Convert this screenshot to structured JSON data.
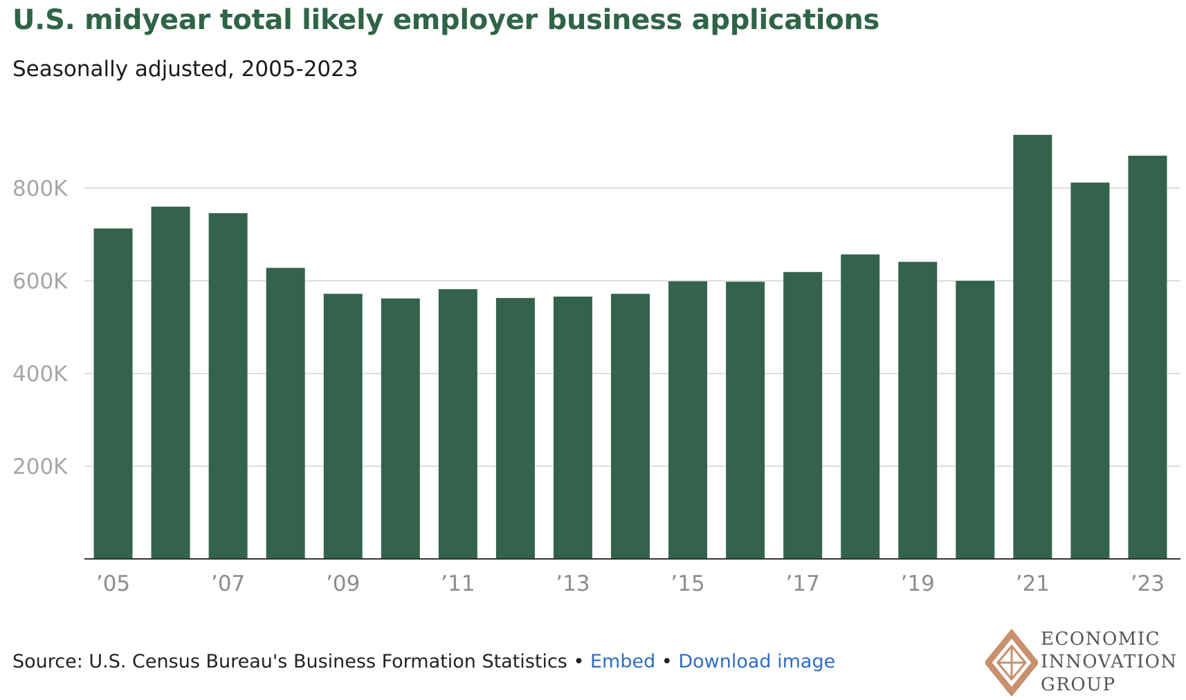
{
  "chart_data": {
    "type": "bar",
    "title": "U.S. midyear total likely employer business applications",
    "subtitle": "Seasonally adjusted, 2005-2023",
    "xlabel": "",
    "ylabel": "",
    "ylim": [
      0,
      950000
    ],
    "yticks": [
      200000,
      400000,
      600000,
      800000
    ],
    "ytick_labels": [
      "200K",
      "400K",
      "600K",
      "800K"
    ],
    "grid": true,
    "bar_color": "#33634c",
    "categories": [
      "2005",
      "2006",
      "2007",
      "2008",
      "2009",
      "2010",
      "2011",
      "2012",
      "2013",
      "2014",
      "2015",
      "2016",
      "2017",
      "2018",
      "2019",
      "2020",
      "2021",
      "2022",
      "2023"
    ],
    "xtick_labels": [
      "’05",
      "",
      "’07",
      "",
      "’09",
      "",
      "’11",
      "",
      "’13",
      "",
      "’15",
      "",
      "’17",
      "",
      "’19",
      "",
      "’21",
      "",
      "’23"
    ],
    "values": [
      713000,
      760000,
      746000,
      628000,
      572000,
      562000,
      582000,
      563000,
      566000,
      572000,
      599000,
      598000,
      619000,
      657000,
      641000,
      600000,
      915000,
      812000,
      870000
    ]
  },
  "footer": {
    "source": "Source: U.S. Census Bureau's Business Formation Statistics",
    "separator": " • ",
    "embed": "Embed",
    "download": "Download image"
  },
  "logo": {
    "line1": "ECONOMIC",
    "line2": "INNOVATION",
    "line3": "GROUP",
    "color": "#c8906c"
  }
}
